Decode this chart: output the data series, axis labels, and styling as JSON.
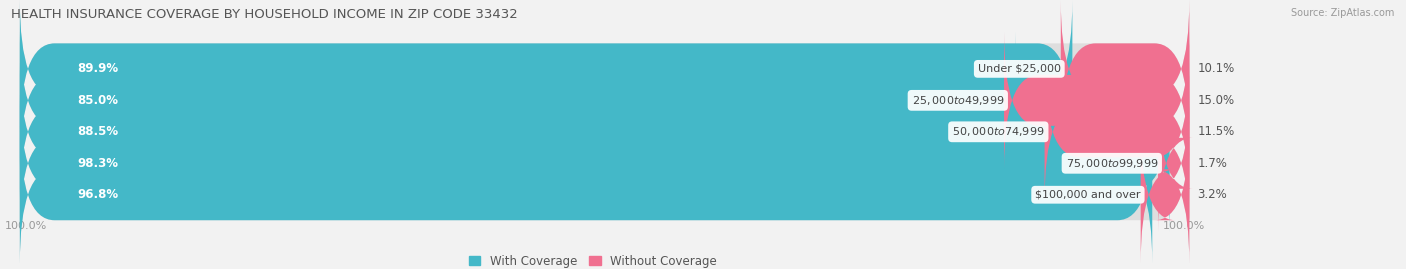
{
  "title": "HEALTH INSURANCE COVERAGE BY HOUSEHOLD INCOME IN ZIP CODE 33432",
  "source": "Source: ZipAtlas.com",
  "categories": [
    "Under $25,000",
    "$25,000 to $49,999",
    "$50,000 to $74,999",
    "$75,000 to $99,999",
    "$100,000 and over"
  ],
  "with_coverage": [
    89.9,
    85.0,
    88.5,
    98.3,
    96.8
  ],
  "without_coverage": [
    10.1,
    15.0,
    11.5,
    1.7,
    3.2
  ],
  "color_with": "#44b8c8",
  "color_without": "#f07090",
  "background_color": "#f2f2f2",
  "bar_bg_color": "#e0e0e0",
  "title_fontsize": 9.5,
  "label_fontsize": 8.5,
  "legend_fontsize": 8.5,
  "bar_height": 0.62,
  "figsize": [
    14.06,
    2.69
  ],
  "dpi": 100
}
